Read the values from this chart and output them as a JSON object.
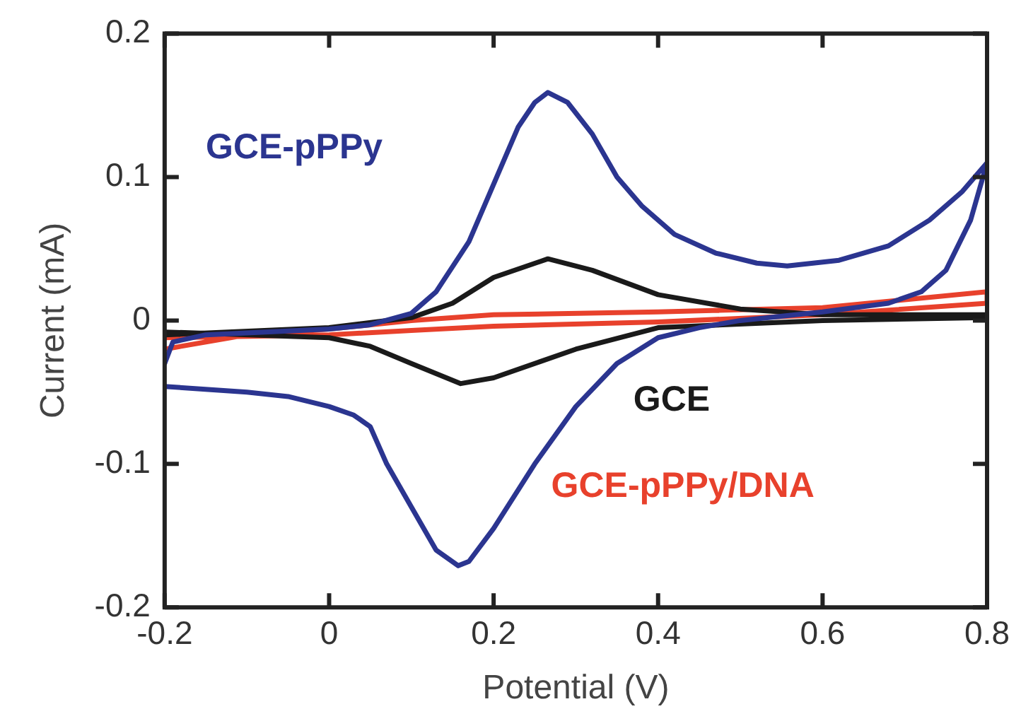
{
  "chart_data": {
    "type": "line",
    "xlabel": "Potential (V)",
    "ylabel": "Current (mA)",
    "xlim": [
      -0.2,
      0.8
    ],
    "ylim": [
      -0.2,
      0.2
    ],
    "xticks": [
      -0.2,
      0,
      0.2,
      0.4,
      0.6,
      0.8
    ],
    "yticks": [
      -0.2,
      -0.1,
      0,
      0.1,
      0.2
    ],
    "grid": false,
    "legend": false,
    "marker": "none",
    "line_style": "solid",
    "series": [
      {
        "name": "GCE-pPPy",
        "color": "#2b3590",
        "x": [
          -0.2,
          -0.19,
          -0.15,
          0,
          0.05,
          0.1,
          0.13,
          0.17,
          0.2,
          0.23,
          0.25,
          0.266,
          0.29,
          0.32,
          0.35,
          0.38,
          0.42,
          0.47,
          0.52,
          0.557,
          0.62,
          0.68,
          0.73,
          0.77,
          0.8,
          0.78,
          0.75,
          0.72,
          0.68,
          0.6,
          0.5,
          0.45,
          0.4,
          0.35,
          0.3,
          0.25,
          0.2,
          0.17,
          0.157,
          0.13,
          0.1,
          0.07,
          0.05,
          0.03,
          0,
          -0.05,
          -0.1,
          -0.2
        ],
        "values": [
          -0.03,
          -0.015,
          -0.01,
          -0.006,
          -0.003,
          0.005,
          0.02,
          0.055,
          0.095,
          0.135,
          0.152,
          0.159,
          0.152,
          0.13,
          0.1,
          0.08,
          0.06,
          0.047,
          0.04,
          0.038,
          0.042,
          0.052,
          0.07,
          0.09,
          0.11,
          0.07,
          0.035,
          0.02,
          0.012,
          0.006,
          0,
          -0.005,
          -0.012,
          -0.03,
          -0.06,
          -0.1,
          -0.145,
          -0.168,
          -0.171,
          -0.16,
          -0.13,
          -0.1,
          -0.074,
          -0.066,
          -0.06,
          -0.053,
          -0.05,
          -0.046
        ]
      },
      {
        "name": "GCE",
        "color": "#1a1a1a",
        "x": [
          -0.2,
          0,
          0.1,
          0.15,
          0.2,
          0.266,
          0.32,
          0.4,
          0.5,
          0.6,
          0.8,
          0.8,
          0.6,
          0.4,
          0.3,
          0.2,
          0.16,
          0.1,
          0.05,
          0,
          -0.2
        ],
        "values": [
          -0.01,
          -0.005,
          0.002,
          0.012,
          0.03,
          0.043,
          0.035,
          0.018,
          0.008,
          0.004,
          0.004,
          0.002,
          0,
          -0.005,
          -0.02,
          -0.04,
          -0.044,
          -0.03,
          -0.018,
          -0.012,
          -0.008
        ]
      },
      {
        "name": "GCE-pPPy/DNA",
        "color": "#e8412c",
        "x": [
          -0.2,
          -0.1,
          0,
          0.1,
          0.2,
          0.4,
          0.6,
          0.8,
          0.8,
          0.6,
          0.4,
          0.2,
          0.1,
          0,
          -0.2
        ],
        "values": [
          -0.02,
          -0.01,
          -0.006,
          0,
          0.004,
          0.006,
          0.009,
          0.02,
          0.012,
          0.004,
          -0.001,
          -0.004,
          -0.007,
          -0.01,
          -0.012
        ]
      }
    ]
  }
}
